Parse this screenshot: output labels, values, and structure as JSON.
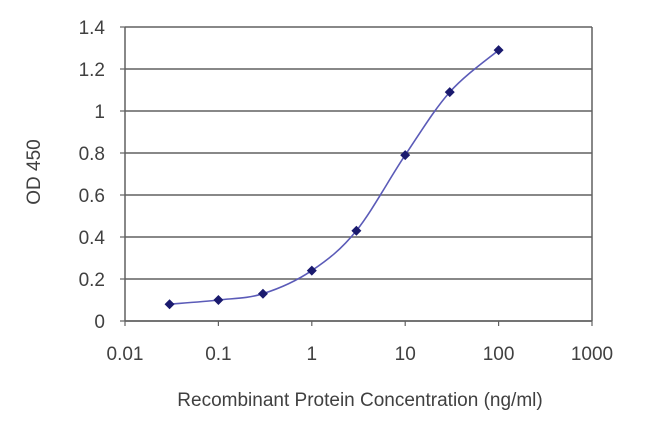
{
  "chart_data": {
    "type": "line",
    "xscale": "log",
    "xlabel": "Recombinant Protein Concentration (ng/ml)",
    "ylabel": "OD 450",
    "xlim": [
      0.01,
      1000
    ],
    "ylim": [
      0,
      1.4
    ],
    "x_tick_labels": [
      "0.01",
      "0.1",
      "1",
      "10",
      "100",
      "1000"
    ],
    "x_tick_values": [
      0.01,
      0.1,
      1,
      10,
      100,
      1000
    ],
    "y_tick_labels": [
      "0",
      "0.2",
      "0.4",
      "0.6",
      "0.8",
      "1",
      "1.2",
      "1.4"
    ],
    "y_tick_values": [
      0,
      0.2,
      0.4,
      0.6,
      0.8,
      1,
      1.2,
      1.4
    ],
    "grid": "horizontal",
    "series": [
      {
        "x": [
          0.03,
          0.1,
          0.3,
          1,
          3,
          10,
          30,
          100
        ],
        "y": [
          0.08,
          0.1,
          0.13,
          0.24,
          0.43,
          0.79,
          1.09,
          1.29
        ]
      }
    ],
    "colors": {
      "line": "#5b5bb8",
      "marker": "#1a1a6e",
      "grid": "#606060",
      "axis": "#606060"
    }
  }
}
